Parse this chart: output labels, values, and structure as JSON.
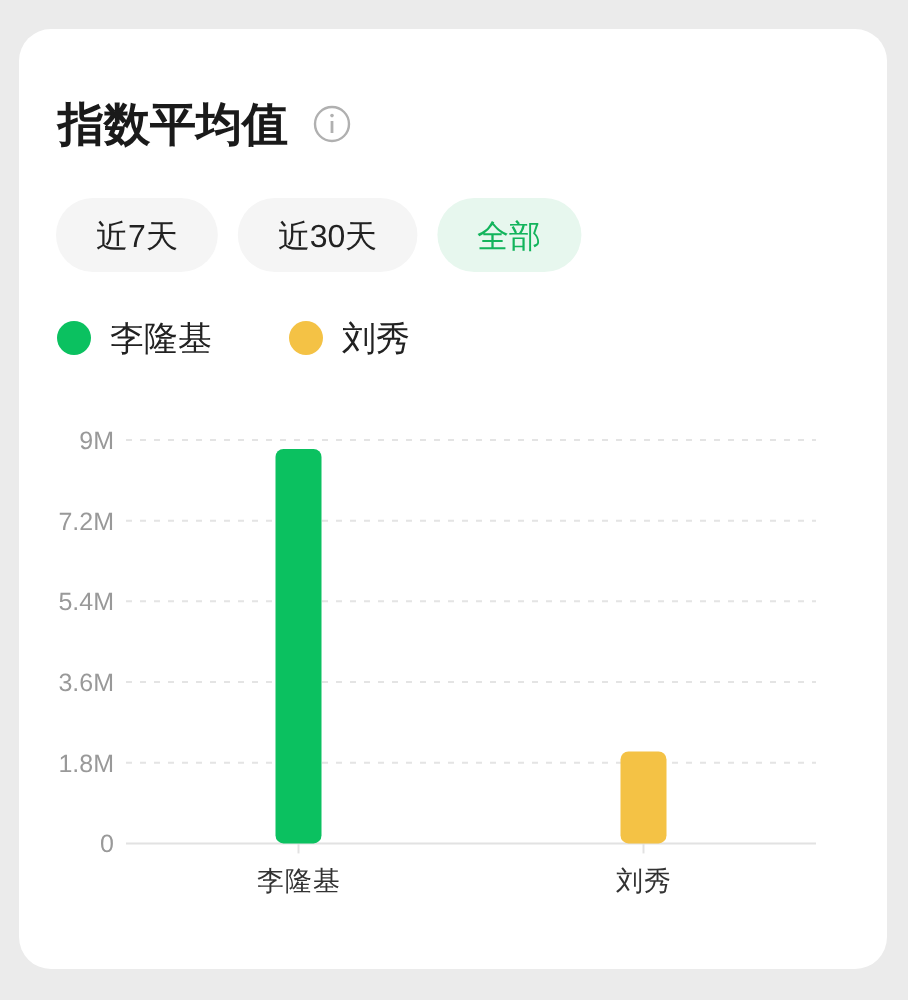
{
  "chart_data": {
    "type": "bar",
    "title": "指数平均值",
    "annotations": [
      "近7天",
      "近30天",
      "全部"
    ],
    "categories": [
      "李隆基",
      "刘秀"
    ],
    "series": [
      {
        "name": "李隆基",
        "color": "#0bc160",
        "values": [
          8800000,
          null
        ]
      },
      {
        "name": "刘秀",
        "color": "#f4c245",
        "values": [
          null,
          2050000
        ]
      }
    ],
    "ylim": [
      0,
      9000000
    ],
    "yticks": [
      0,
      {
        "value": 1800000,
        "label": "1.8M"
      },
      {
        "value": 3600000,
        "label": "3.6M"
      },
      {
        "value": 5400000,
        "label": "5.4M"
      },
      {
        "value": 7200000,
        "label": "7.2M"
      },
      {
        "value": 9000000,
        "label": "9M"
      }
    ],
    "grid": "y",
    "legend": "top left"
  }
}
